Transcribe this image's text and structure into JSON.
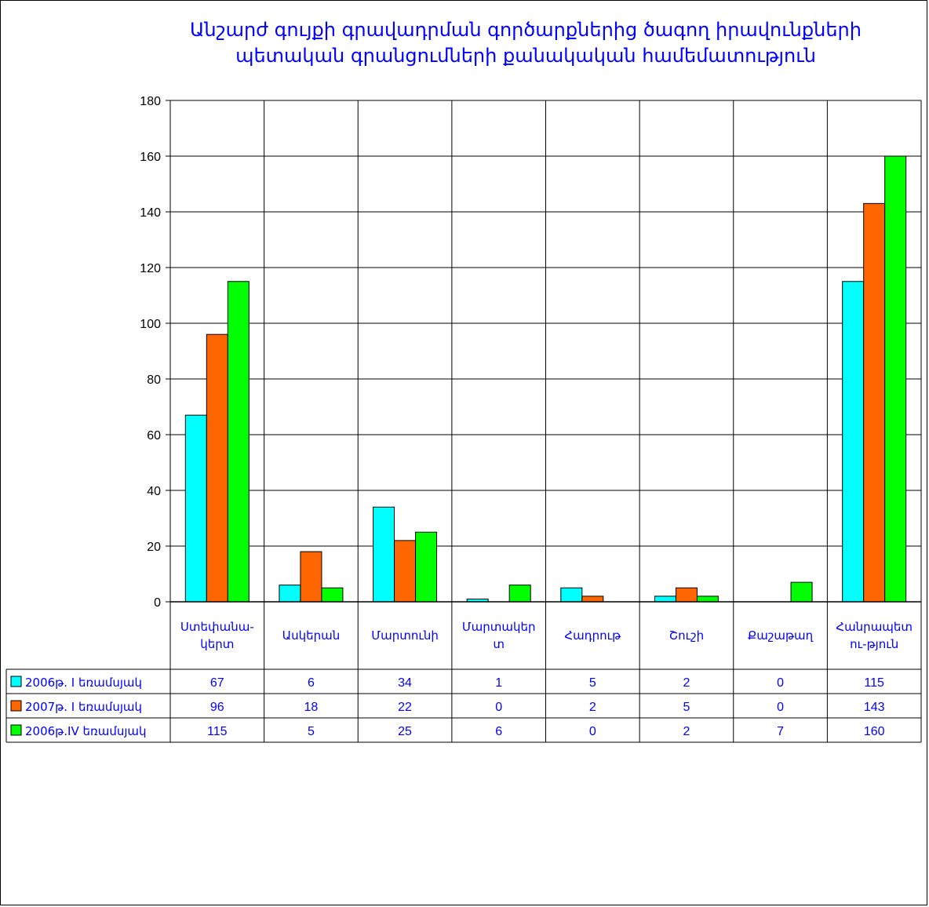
{
  "chart_data": {
    "type": "bar",
    "title": "Անշարժ գույքի  գրավադրման գործարքներից ծագող իրավունքների պետական գրանցումների քանակական համեմատություն",
    "categories": [
      "Ստեփանա-կերտ",
      "Ասկերան",
      "Մարտունի",
      "Մարտակերտ",
      "Հադրութ",
      "Շուշի",
      "Քաշաթաղ",
      "Հանրապետու-թյուն"
    ],
    "category_lines": [
      [
        "Ստեփանա-",
        "կերտ"
      ],
      [
        "Ասկերան"
      ],
      [
        "Մարտունի"
      ],
      [
        "Մարտակեր",
        "տ"
      ],
      [
        "Հադրութ"
      ],
      [
        "Շուշի"
      ],
      [
        "Քաշաթաղ"
      ],
      [
        "Հանրապետ",
        "ու-թյուն"
      ]
    ],
    "series": [
      {
        "name": "2006թ. I եռամսյակ",
        "color": "#00ffff",
        "values": [
          67,
          6,
          34,
          1,
          5,
          2,
          0,
          115
        ]
      },
      {
        "name": "2007թ. I եռամսյակ",
        "color": "#ff6600",
        "values": [
          96,
          18,
          22,
          0,
          2,
          5,
          0,
          143
        ]
      },
      {
        "name": "2006թ.IV եռամսյակ",
        "color": "#00ff00",
        "values": [
          115,
          5,
          25,
          6,
          0,
          2,
          7,
          160
        ]
      }
    ],
    "ylim": [
      0,
      180
    ],
    "yticks": [
      0,
      20,
      40,
      60,
      80,
      100,
      120,
      140,
      160,
      180
    ],
    "grid": true,
    "legend": "data-table-below"
  }
}
